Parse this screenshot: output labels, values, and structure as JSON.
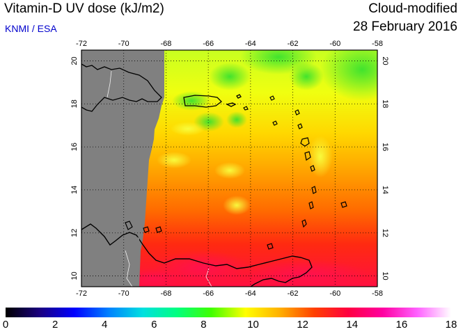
{
  "header": {
    "title": "Vitamin-D UV dose (kJ/m2)",
    "credit": "KNMI / ESA",
    "product": "Cloud-modified",
    "date": "28 February 2016"
  },
  "map": {
    "lon_range": [
      -72,
      -58
    ],
    "lat_range": [
      9.5,
      20.5
    ],
    "lon_ticks": [
      "-72",
      "-70",
      "-68",
      "-66",
      "-64",
      "-62",
      "-60",
      "-58"
    ],
    "lat_ticks": [
      "10",
      "12",
      "14",
      "16",
      "18",
      "20"
    ],
    "no_data_color": "#808080",
    "coastline_color": "#000000",
    "grid_style": "dotted"
  },
  "colorbar": {
    "min": 0,
    "max": 18,
    "labels": [
      "0",
      "2",
      "4",
      "6",
      "8",
      "10",
      "12",
      "14",
      "16",
      "18"
    ],
    "colors": [
      "#000000",
      "#1a0080",
      "#0000ff",
      "#0080ff",
      "#00e0e0",
      "#00ff80",
      "#40ff00",
      "#ffff00",
      "#ffb000",
      "#ff4000",
      "#ff0040",
      "#ff00a0",
      "#ff60ff",
      "#ffffff"
    ]
  }
}
